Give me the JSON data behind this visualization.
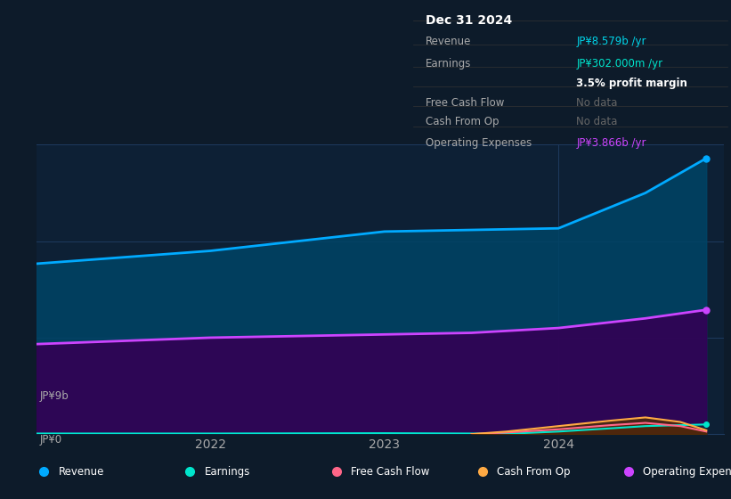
{
  "bg_color": "#0d1b2a",
  "plot_bg_color": "#0d2035",
  "grid_color": "#1e3a5f",
  "title_box": {
    "title": "Dec 31 2024",
    "rows": [
      {
        "label": "Revenue",
        "value": "JP¥8.579b /yr",
        "value_color": "#00d4e8"
      },
      {
        "label": "Earnings",
        "value": "JP¥302.000m /yr",
        "value_color": "#00e5cc"
      },
      {
        "label": "",
        "value": "3.5% profit margin",
        "value_color": "#ffffff"
      },
      {
        "label": "Free Cash Flow",
        "value": "No data",
        "value_color": "#666666"
      },
      {
        "label": "Cash From Op",
        "value": "No data",
        "value_color": "#666666"
      },
      {
        "label": "Operating Expenses",
        "value": "JP¥3.866b /yr",
        "value_color": "#cc44ff"
      }
    ]
  },
  "ylabel_top": "JP¥9b",
  "ylabel_zero": "JP¥0",
  "x_ticks": [
    2022,
    2023,
    2024
  ],
  "ylim": [
    0,
    9
  ],
  "series": {
    "revenue": {
      "color": "#00aaff",
      "fill_color": "#004466",
      "label": "Revenue",
      "x": [
        2021.0,
        2021.5,
        2022.0,
        2022.5,
        2023.0,
        2023.5,
        2024.0,
        2024.5,
        2024.85
      ],
      "y": [
        5.3,
        5.5,
        5.7,
        6.0,
        6.3,
        6.35,
        6.4,
        7.5,
        8.579
      ]
    },
    "operating_expenses": {
      "color": "#cc44ff",
      "fill_color": "#330055",
      "label": "Operating Expenses",
      "x": [
        2021.0,
        2021.5,
        2022.0,
        2022.5,
        2023.0,
        2023.5,
        2024.0,
        2024.5,
        2024.85
      ],
      "y": [
        2.8,
        2.9,
        3.0,
        3.05,
        3.1,
        3.15,
        3.3,
        3.6,
        3.866
      ]
    },
    "earnings": {
      "color": "#00e5cc",
      "fill_color": "#003333",
      "label": "Earnings",
      "x": [
        2021.0,
        2021.5,
        2022.0,
        2022.5,
        2023.0,
        2023.5,
        2023.7,
        2024.0,
        2024.3,
        2024.5,
        2024.85
      ],
      "y": [
        0.02,
        0.02,
        0.02,
        0.025,
        0.03,
        0.02,
        0.01,
        0.08,
        0.18,
        0.25,
        0.302
      ]
    },
    "free_cash_flow": {
      "color": "#ff6688",
      "fill_color": "#550022",
      "label": "Free Cash Flow",
      "x": [
        2023.5,
        2023.7,
        2024.0,
        2024.3,
        2024.5,
        2024.7,
        2024.85
      ],
      "y": [
        0.0,
        0.05,
        0.15,
        0.28,
        0.35,
        0.25,
        0.08
      ]
    },
    "cash_from_op": {
      "color": "#ffaa44",
      "fill_color": "#553300",
      "label": "Cash From Op",
      "x": [
        2023.5,
        2023.7,
        2024.0,
        2024.3,
        2024.5,
        2024.7,
        2024.85
      ],
      "y": [
        0.0,
        0.08,
        0.25,
        0.42,
        0.52,
        0.38,
        0.12
      ]
    }
  },
  "legend": [
    {
      "label": "Revenue",
      "color": "#00aaff"
    },
    {
      "label": "Earnings",
      "color": "#00e5cc"
    },
    {
      "label": "Free Cash Flow",
      "color": "#ff6688"
    },
    {
      "label": "Cash From Op",
      "color": "#ffaa44"
    },
    {
      "label": "Operating Expenses",
      "color": "#cc44ff"
    }
  ]
}
